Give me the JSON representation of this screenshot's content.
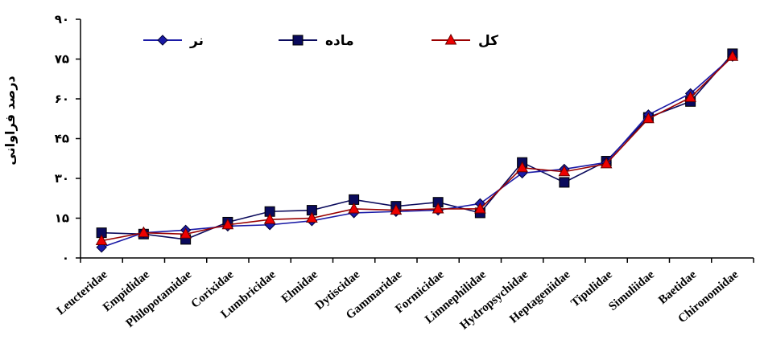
{
  "chart_data": {
    "type": "line",
    "title": "",
    "xlabel": "",
    "ylabel": "درصد فراوانی",
    "ylim": [
      0,
      90
    ],
    "yticks": [
      0,
      15,
      30,
      45,
      60,
      75,
      90
    ],
    "ytick_labels": [
      "۰",
      "۱۵",
      "۳۰",
      "۴۵",
      "۶۰",
      "۷۵",
      "۹۰"
    ],
    "categories": [
      "Leucteridae",
      "Empididae",
      "Philopotamidae",
      "Corixidae",
      "Lumbricidae",
      "Elmidae",
      "Dytiscidae",
      "Gammaridae",
      "Formicidae",
      "Limnephilidae",
      "Hydropsychidae",
      "Heptageniidae",
      "Tipulidae",
      "Simuliidae",
      "Baetidae",
      "Chironomidae"
    ],
    "series": [
      {
        "name": "نر",
        "color": "#1a1aa6",
        "marker": "diamond",
        "values": [
          4,
          9.5,
          10.5,
          12,
          12.5,
          14,
          17,
          17.5,
          18,
          20.5,
          32,
          33.5,
          36,
          54,
          62,
          76
        ]
      },
      {
        "name": "ماده",
        "color": "#0a0a5c",
        "marker": "square",
        "values": [
          9.5,
          9,
          7,
          13.5,
          17.5,
          18,
          22,
          19.5,
          21,
          17,
          36,
          28.5,
          36.5,
          53,
          59,
          77
        ]
      },
      {
        "name": "کل",
        "color": "#990000",
        "marker": "triangle",
        "values": [
          6.5,
          9.5,
          9,
          12.5,
          14.5,
          15,
          18.5,
          18,
          18.5,
          18.5,
          34,
          32.5,
          35.5,
          52.5,
          60.5,
          76
        ]
      }
    ],
    "legend_position": "top",
    "grid": false
  }
}
